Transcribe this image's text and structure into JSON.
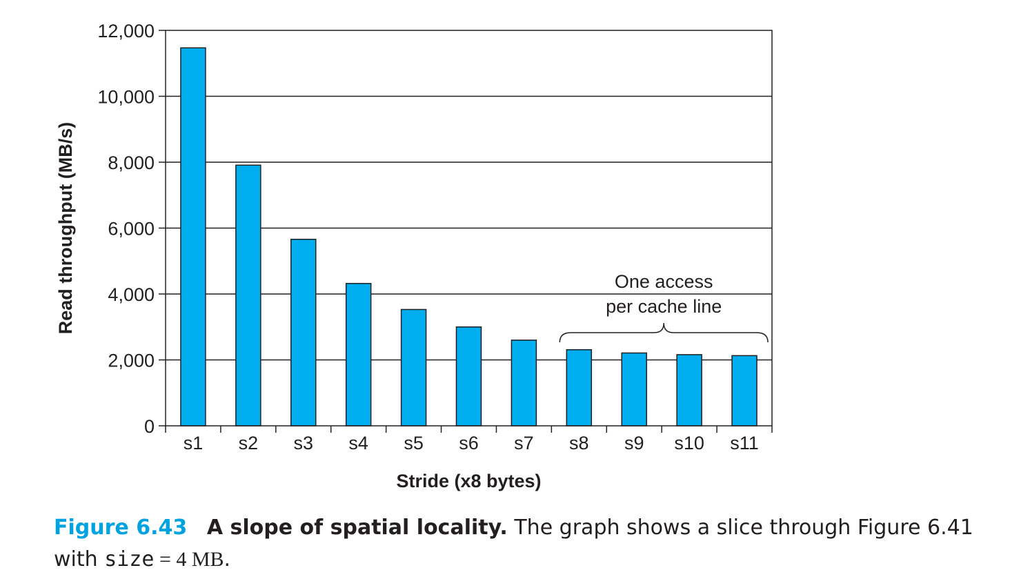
{
  "chart_data": {
    "type": "bar",
    "categories": [
      "s1",
      "s2",
      "s3",
      "s4",
      "s5",
      "s6",
      "s7",
      "s8",
      "s9",
      "s10",
      "s11"
    ],
    "values": [
      11470,
      7910,
      5660,
      4320,
      3530,
      3000,
      2600,
      2310,
      2210,
      2160,
      2130
    ],
    "xlabel": "Stride (x8 bytes)",
    "ylabel": "Read throughput (MB/s)",
    "ylim": [
      0,
      12000
    ],
    "yticks": [
      0,
      2000,
      4000,
      6000,
      8000,
      10000,
      12000
    ],
    "ytick_labels": [
      "0",
      "2,000",
      "4,000",
      "6,000",
      "8,000",
      "10,000",
      "12,000"
    ],
    "grid": "horizontal",
    "bar_color": "#00aeef",
    "annotation": {
      "lines": [
        "One access",
        "per cache line"
      ],
      "spans": [
        "s8",
        "s11"
      ]
    }
  },
  "caption": {
    "figure_number": "Figure 6.43",
    "title": "A slope of spatial locality.",
    "text": " The graph shows a slice through Figure 6.41",
    "line2_prefix": "with ",
    "code": "size",
    "equals": " = ",
    "value": "4 MB",
    "suffix": "."
  }
}
